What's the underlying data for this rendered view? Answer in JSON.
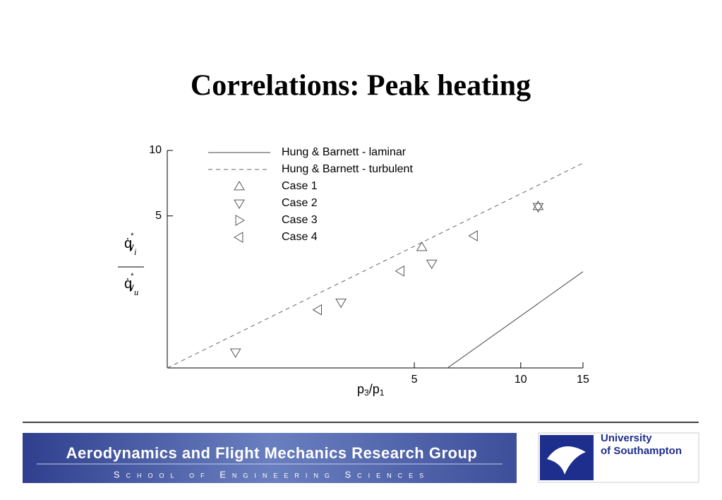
{
  "chart_data": {
    "type": "line",
    "title": "Correlations: Peak heating",
    "x_label": {
      "base": "p",
      "sub1": "3",
      "mid": "/p",
      "sub2": "1"
    },
    "y_label": {
      "numerator": {
        "base": "q̇",
        "sup": "*",
        "sub": "y",
        "subsub": "i"
      },
      "denominator": {
        "base": "q̇",
        "sup": "*",
        "sub": "y",
        "subsub": "u"
      }
    },
    "log_x": true,
    "log_y": true,
    "xlim": [
      1,
      15
    ],
    "xticks": [
      5,
      10,
      15
    ],
    "ylim": [
      1,
      10
    ],
    "yticks": [
      5,
      10
    ],
    "series": [
      {
        "name": "Hung & Barnett - laminar",
        "color": "#444444",
        "marker": "none",
        "dash": false,
        "x": [
          6.21,
          15
        ],
        "values": [
          1,
          2.77
        ]
      },
      {
        "name": "Hung & Barnett - turbulent",
        "color": "#666666",
        "marker": "none",
        "dash": true,
        "x": [
          1,
          15
        ],
        "values": [
          1,
          8.74
        ]
      },
      {
        "name": "Case 1",
        "color": "#555555",
        "marker": "triangle-up",
        "dash": false,
        "x": [
          5.25,
          11.2
        ],
        "values": [
          3.59,
          5.54
        ]
      },
      {
        "name": "Case 2",
        "color": "#555555",
        "marker": "triangle-down",
        "dash": false,
        "x": [
          1.56,
          3.1,
          5.6,
          11.2
        ],
        "values": [
          1.18,
          2.0,
          3.02,
          5.5
        ]
      },
      {
        "name": "Case 3",
        "color": "#555555",
        "marker": "triangle-right",
        "dash": false,
        "x": [],
        "values": []
      },
      {
        "name": "Case 4",
        "color": "#555555",
        "marker": "triangle-left",
        "dash": false,
        "x": [
          2.67,
          4.57,
          7.37
        ],
        "values": [
          1.85,
          2.79,
          4.05
        ]
      }
    ]
  },
  "footer": {
    "group": "Aerodynamics and Flight Mechanics Research Group",
    "school": "School of Engineering Sciences",
    "university": [
      "University",
      "of Southampton"
    ]
  }
}
